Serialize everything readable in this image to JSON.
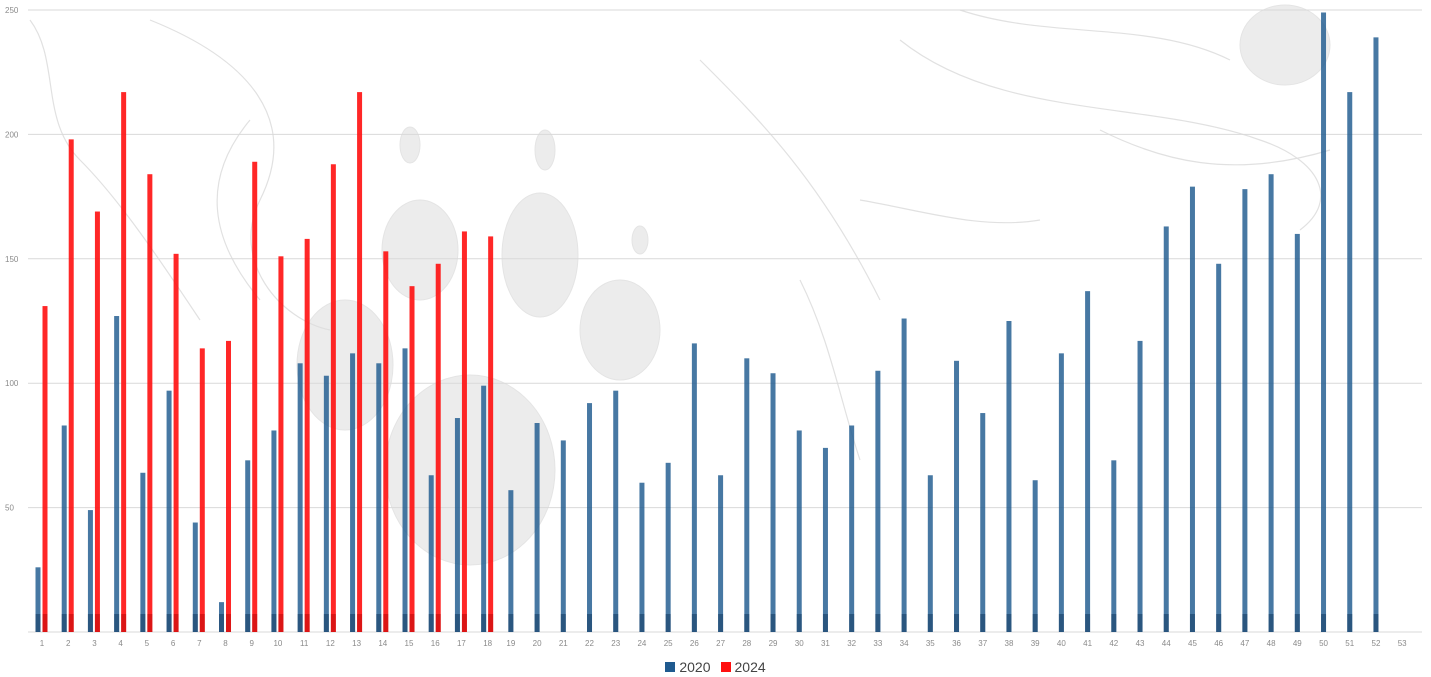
{
  "chart_data": {
    "type": "bar",
    "categories": [
      "1",
      "2",
      "3",
      "4",
      "5",
      "6",
      "7",
      "8",
      "9",
      "10",
      "11",
      "12",
      "13",
      "14",
      "15",
      "16",
      "17",
      "18",
      "19",
      "20",
      "21",
      "22",
      "23",
      "24",
      "25",
      "26",
      "27",
      "28",
      "29",
      "30",
      "31",
      "32",
      "33",
      "34",
      "35",
      "36",
      "37",
      "38",
      "39",
      "40",
      "41",
      "42",
      "43",
      "44",
      "45",
      "46",
      "47",
      "48",
      "49",
      "50",
      "51",
      "52",
      "53"
    ],
    "series": [
      {
        "name": "2020",
        "color": "#1f5a8f",
        "values": [
          26,
          83,
          49,
          127,
          64,
          97,
          44,
          12,
          69,
          81,
          108,
          103,
          112,
          108,
          114,
          63,
          86,
          99,
          57,
          84,
          77,
          92,
          97,
          60,
          68,
          116,
          63,
          110,
          104,
          81,
          74,
          83,
          105,
          126,
          63,
          109,
          88,
          125,
          61,
          112,
          137,
          69,
          117,
          163,
          179,
          148,
          178,
          184,
          160,
          249,
          217,
          239,
          null
        ]
      },
      {
        "name": "2024",
        "color": "#ff1010",
        "values": [
          131,
          198,
          169,
          217,
          184,
          152,
          114,
          117,
          189,
          151,
          158,
          188,
          217,
          153,
          139,
          148,
          161,
          159,
          null,
          null,
          null,
          null,
          null,
          null,
          null,
          null,
          null,
          null,
          null,
          null,
          null,
          null,
          null,
          null,
          null,
          null,
          null,
          null,
          null,
          null,
          null,
          null,
          null,
          null,
          null,
          null,
          null,
          null,
          null,
          null,
          null,
          null,
          null
        ]
      }
    ],
    "yticks": [
      "50",
      "100",
      "150",
      "200",
      "250"
    ],
    "ylim": [
      0,
      250
    ],
    "grid": true,
    "legend_position": "bottom-center",
    "background_image": "pencil-sketch-watermark"
  }
}
